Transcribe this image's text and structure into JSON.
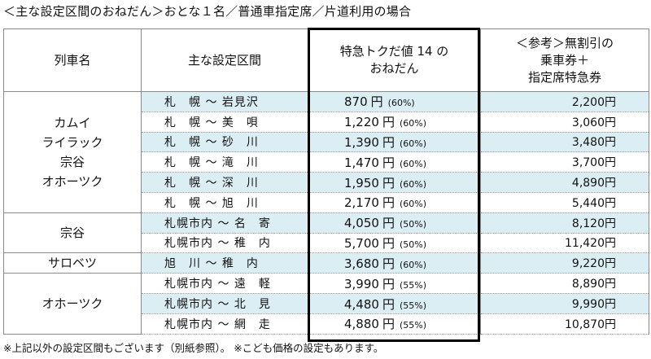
{
  "title": "＜主な設定区間のおねだん＞おとな１名／普通車指定席／片道利用の場合",
  "headers": {
    "train": "列車名",
    "section": "主な設定区間",
    "price_l1": "特急トクだ値 14 の",
    "price_l2": "おねだん",
    "ref_l1": "＜参考＞無割引の",
    "ref_l2": "乗車券＋",
    "ref_l3": "指定席特急券"
  },
  "groups": [
    {
      "name": [
        "カムイ",
        "ライラック",
        "宗谷",
        "オホーツク"
      ],
      "rows": [
        {
          "from": "札　幌",
          "to": "岩見沢",
          "price": "870",
          "pct": "(60%)",
          "ref": "2,200"
        },
        {
          "from": "札　幌",
          "to": "美　唄",
          "price": "1,220",
          "pct": "(60%)",
          "ref": "3,060"
        },
        {
          "from": "札　幌",
          "to": "砂　川",
          "price": "1,390",
          "pct": "(60%)",
          "ref": "3,480"
        },
        {
          "from": "札　幌",
          "to": "滝　川",
          "price": "1,470",
          "pct": "(60%)",
          "ref": "3,700"
        },
        {
          "from": "札　幌",
          "to": "深　川",
          "price": "1,950",
          "pct": "(60%)",
          "ref": "4,890"
        },
        {
          "from": "札　幌",
          "to": "旭　川",
          "price": "2,170",
          "pct": "(60%)",
          "ref": "5,440"
        }
      ]
    },
    {
      "name": [
        "宗谷"
      ],
      "rows": [
        {
          "from": "札幌市内",
          "to": "名　寄",
          "price": "4,050",
          "pct": "(50%)",
          "ref": "8,120"
        },
        {
          "from": "札幌市内",
          "to": "稚　内",
          "price": "5,700",
          "pct": "(50%)",
          "ref": "11,420"
        }
      ]
    },
    {
      "name": [
        "サロベツ"
      ],
      "rows": [
        {
          "from": "旭　川",
          "to": "稚　内",
          "price": "3,680",
          "pct": "(60%)",
          "ref": "9,220"
        }
      ]
    },
    {
      "name": [
        "オホーツク"
      ],
      "rows": [
        {
          "from": "札幌市内",
          "to": "遠　軽",
          "price": "3,990",
          "pct": "(55%)",
          "ref": "8,890"
        },
        {
          "from": "札幌市内",
          "to": "北　見",
          "price": "4,480",
          "pct": "(55%)",
          "ref": "9,990"
        },
        {
          "from": "札幌市内",
          "to": "網　走",
          "price": "4,880",
          "pct": "(55%)",
          "ref": "10,870"
        }
      ]
    }
  ],
  "tilde": "～",
  "yen": "円",
  "footnote": "※上記以外の設定区間もございます（別紙参照）。 ※こども価格の設定もあります。",
  "colors": {
    "shade": "#dbeef4",
    "border": "#8a8a8a",
    "highlight_box": "#000000"
  }
}
